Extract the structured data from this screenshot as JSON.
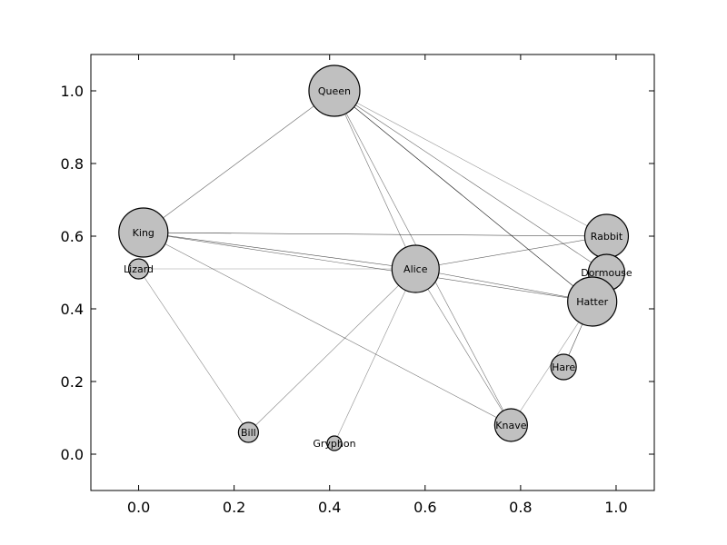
{
  "chart_data": {
    "type": "network",
    "title": "",
    "xlabel": "",
    "ylabel": "",
    "xlim": [
      -0.1,
      1.08
    ],
    "ylim": [
      -0.1,
      1.1
    ],
    "x_ticks": [
      0.0,
      0.2,
      0.4,
      0.6,
      0.8,
      1.0
    ],
    "y_ticks": [
      0.0,
      0.2,
      0.4,
      0.6,
      0.8,
      1.0
    ],
    "x_tick_labels": [
      "0.0",
      "0.2",
      "0.4",
      "0.6",
      "0.8",
      "1.0"
    ],
    "y_tick_labels": [
      "0.0",
      "0.2",
      "0.4",
      "0.6",
      "0.8",
      "1.0"
    ],
    "grid": false,
    "node_color": "#c0c0c0",
    "edge_color": "#000000",
    "nodes": [
      {
        "name": "Queen",
        "x": 0.41,
        "y": 1.0,
        "size": 28
      },
      {
        "name": "King",
        "x": 0.01,
        "y": 0.61,
        "size": 27
      },
      {
        "name": "Lizard",
        "x": 0.0,
        "y": 0.51,
        "size": 11
      },
      {
        "name": "Alice",
        "x": 0.58,
        "y": 0.51,
        "size": 26
      },
      {
        "name": "Rabbit",
        "x": 0.98,
        "y": 0.6,
        "size": 24
      },
      {
        "name": "Dormouse",
        "x": 0.98,
        "y": 0.5,
        "size": 20
      },
      {
        "name": "Hatter",
        "x": 0.95,
        "y": 0.42,
        "size": 27
      },
      {
        "name": "Hare",
        "x": 0.89,
        "y": 0.24,
        "size": 14
      },
      {
        "name": "Bill",
        "x": 0.23,
        "y": 0.06,
        "size": 11
      },
      {
        "name": "Gryphon",
        "x": 0.41,
        "y": 0.03,
        "size": 8
      },
      {
        "name": "Knave",
        "x": 0.78,
        "y": 0.08,
        "size": 18
      }
    ],
    "edges": [
      {
        "source": "Queen",
        "target": "King",
        "weight": 0.5
      },
      {
        "source": "Queen",
        "target": "Alice",
        "weight": 0.4
      },
      {
        "source": "Queen",
        "target": "Knave",
        "weight": 0.4
      },
      {
        "source": "Queen",
        "target": "Hatter",
        "weight": 0.9
      },
      {
        "source": "Queen",
        "target": "Dormouse",
        "weight": 0.5
      },
      {
        "source": "Queen",
        "target": "Rabbit",
        "weight": 0.25
      },
      {
        "source": "King",
        "target": "Rabbit",
        "weight": 0.8
      },
      {
        "source": "King",
        "target": "Alice",
        "weight": 0.6
      },
      {
        "source": "King",
        "target": "Hatter",
        "weight": 0.5
      },
      {
        "source": "King",
        "target": "Knave",
        "weight": 0.4
      },
      {
        "source": "Lizard",
        "target": "Alice",
        "weight": 0.2
      },
      {
        "source": "Lizard",
        "target": "Bill",
        "weight": 0.3
      },
      {
        "source": "Alice",
        "target": "Rabbit",
        "weight": 0.5
      },
      {
        "source": "Alice",
        "target": "Hatter",
        "weight": 0.5
      },
      {
        "source": "Alice",
        "target": "Bill",
        "weight": 0.3
      },
      {
        "source": "Alice",
        "target": "Gryphon",
        "weight": 0.25
      },
      {
        "source": "Alice",
        "target": "Knave",
        "weight": 0.4
      },
      {
        "source": "Hatter",
        "target": "Hare",
        "weight": 0.6
      },
      {
        "source": "Hatter",
        "target": "Knave",
        "weight": 0.2
      }
    ]
  }
}
